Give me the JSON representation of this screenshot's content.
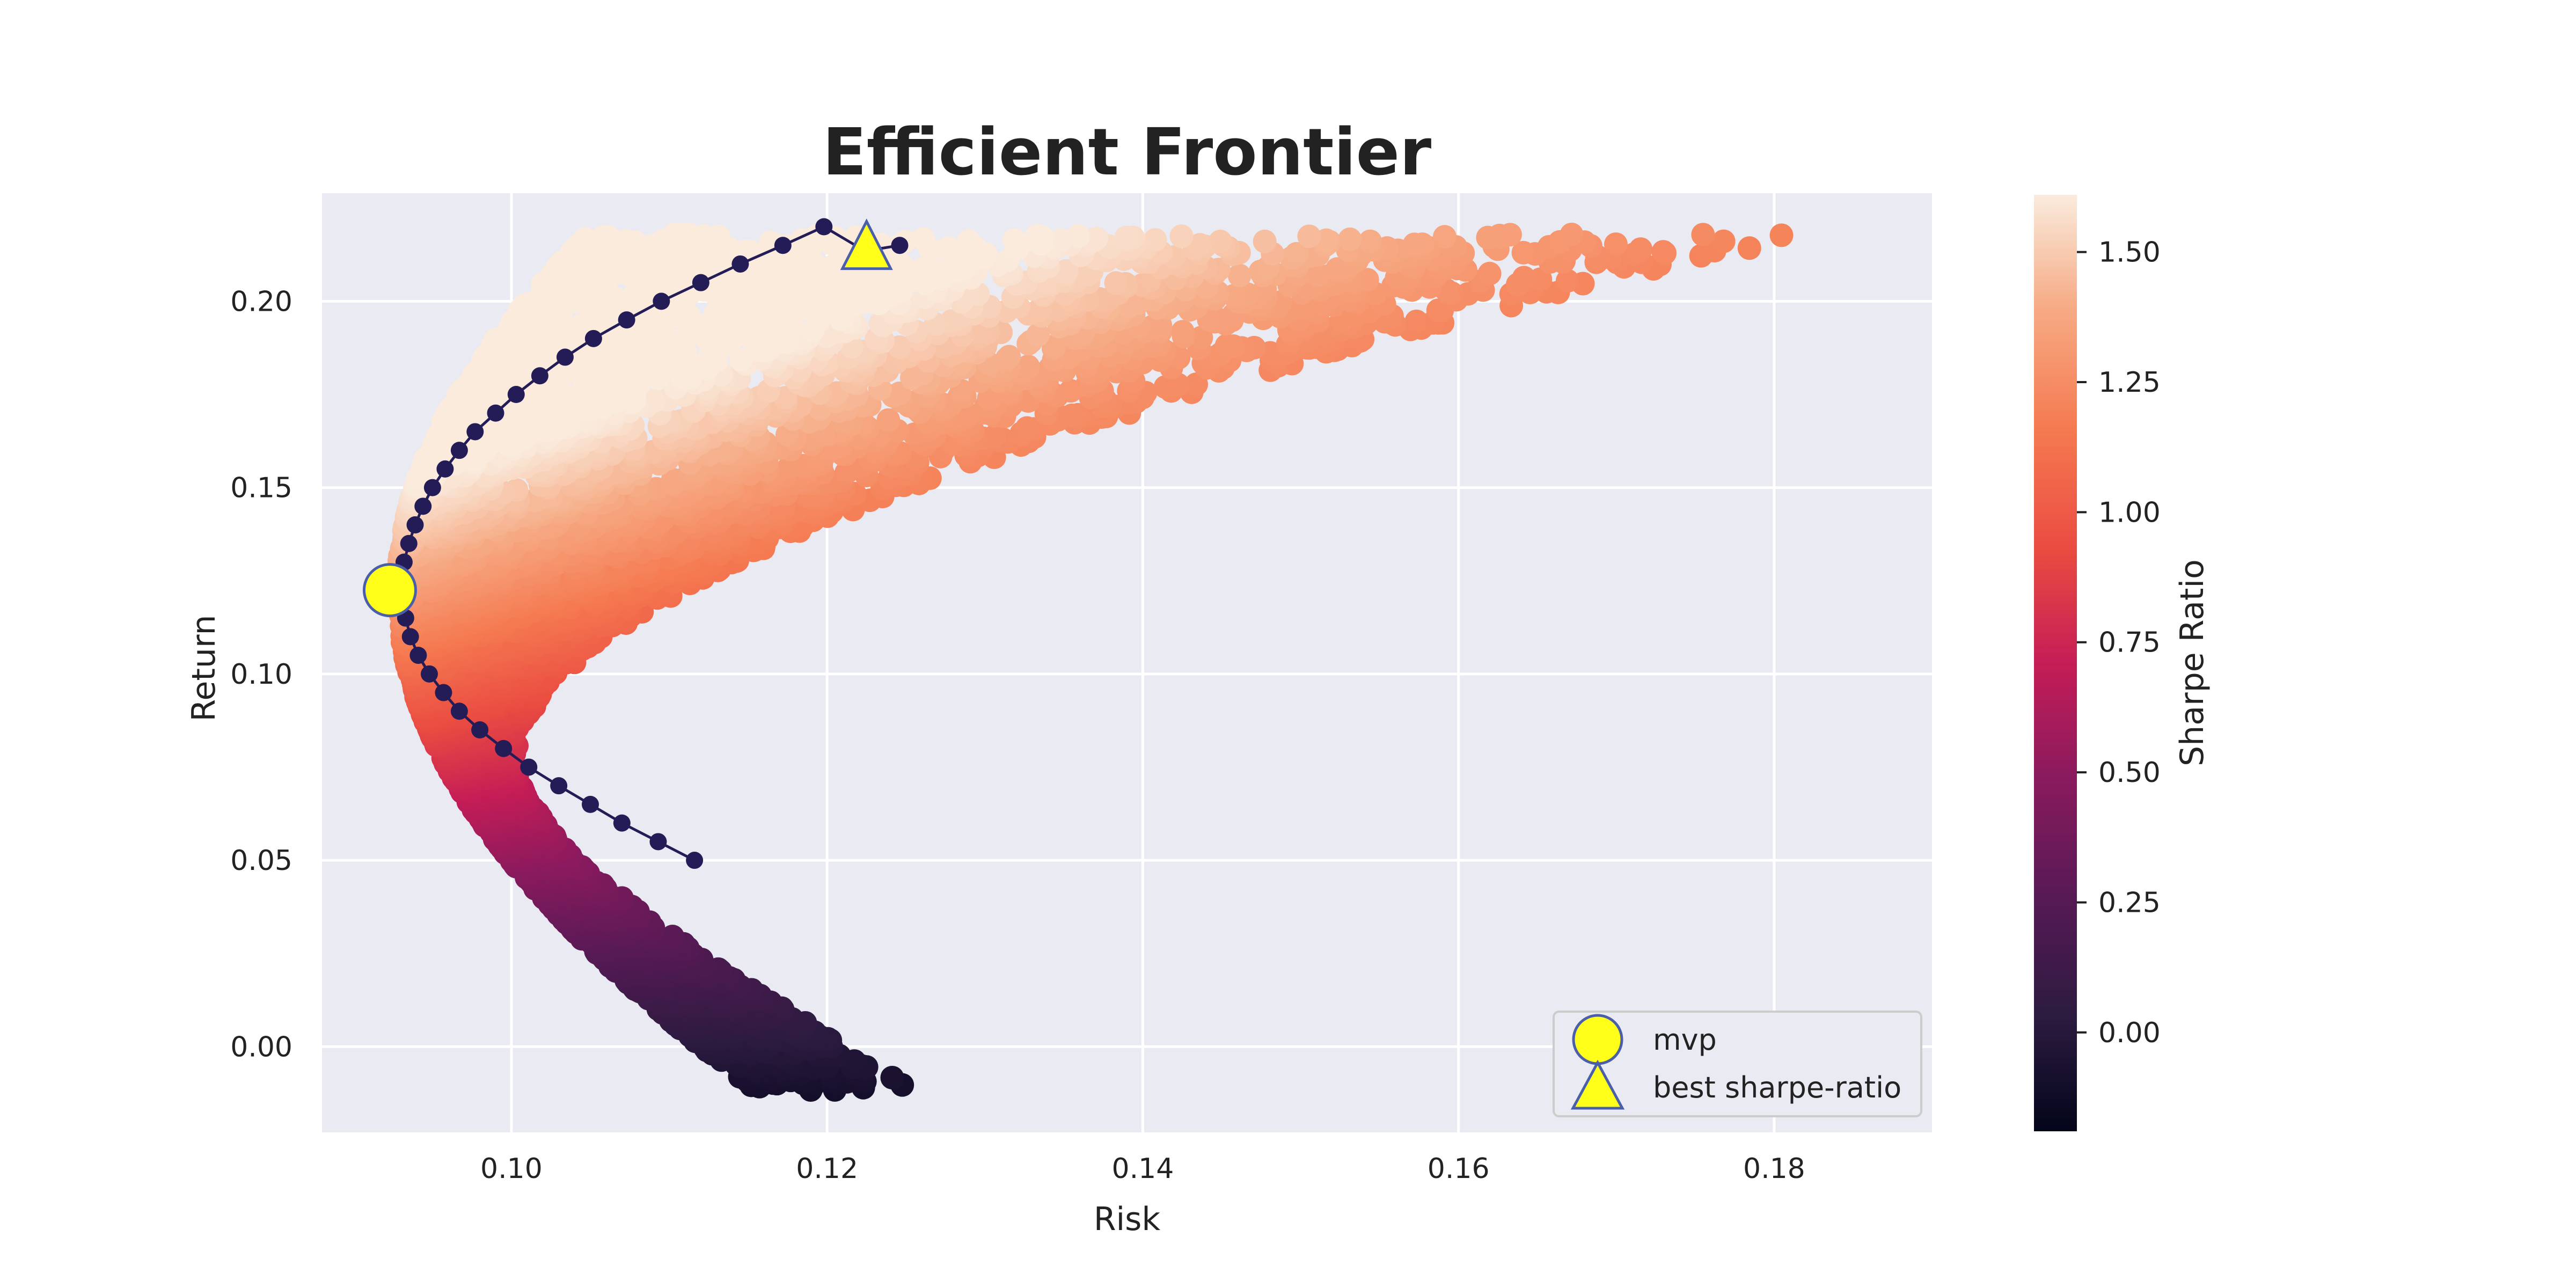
{
  "chart_data": {
    "type": "scatter",
    "title": "Efficient Frontier",
    "xlabel": "Risk",
    "ylabel": "Return",
    "xlim": [
      0.088,
      0.19
    ],
    "ylim": [
      -0.023,
      0.229
    ],
    "xticks": [
      0.1,
      0.12,
      0.14,
      0.16,
      0.18
    ],
    "xtick_labels": [
      "0.10",
      "0.12",
      "0.14",
      "0.16",
      "0.18"
    ],
    "yticks": [
      0.0,
      0.05,
      0.1,
      0.15,
      0.2
    ],
    "ytick_labels": [
      "0.00",
      "0.05",
      "0.10",
      "0.15",
      "0.20"
    ],
    "grid": true,
    "colorbar": {
      "label": "Sharpe Ratio",
      "range": [
        -0.19,
        1.61
      ],
      "ticks": [
        0.0,
        0.25,
        0.5,
        0.75,
        1.0,
        1.25,
        1.5
      ],
      "tick_labels": [
        "0.00",
        "0.25",
        "0.50",
        "0.75",
        "1.00",
        "1.25",
        "1.50"
      ],
      "colormap": "rocket"
    },
    "scatter_description": "Monte Carlo portfolios colored by Sharpe Ratio; region bounded on the left by the efficient frontier",
    "frontier": {
      "x": [
        0.1116,
        0.1093,
        0.107,
        0.105,
        0.103,
        0.1011,
        0.0995,
        0.098,
        0.0967,
        0.0957,
        0.0948,
        0.0941,
        0.0936,
        0.0933,
        0.0931,
        0.0931,
        0.0932,
        0.0935,
        0.0939,
        0.0944,
        0.095,
        0.0958,
        0.0967,
        0.0977,
        0.099,
        0.1003,
        0.1018,
        0.1034,
        0.1052,
        0.1073,
        0.1095,
        0.112,
        0.1145,
        0.1172,
        0.1198,
        0.1224,
        0.1246
      ],
      "y": [
        0.05,
        0.055,
        0.06,
        0.065,
        0.07,
        0.075,
        0.08,
        0.085,
        0.09,
        0.095,
        0.1,
        0.105,
        0.11,
        0.115,
        0.12,
        0.125,
        0.13,
        0.135,
        0.14,
        0.145,
        0.15,
        0.155,
        0.16,
        0.165,
        0.17,
        0.175,
        0.18,
        0.185,
        0.19,
        0.195,
        0.2,
        0.205,
        0.21,
        0.215,
        0.22,
        0.2135,
        0.215
      ],
      "color": "#241c56"
    },
    "special_points": [
      {
        "name": "mvp",
        "marker": "circle",
        "x": 0.0923,
        "y": 0.1225,
        "color": "#ffff1a",
        "edge": "#4a5fa8"
      },
      {
        "name": "best sharpe-ratio",
        "marker": "triangle",
        "x": 0.1225,
        "y": 0.2135,
        "color": "#ffff1a",
        "edge": "#4a5fa8"
      }
    ],
    "legend": {
      "position": "lower right",
      "entries": [
        "mvp",
        "best sharpe-ratio"
      ]
    }
  }
}
